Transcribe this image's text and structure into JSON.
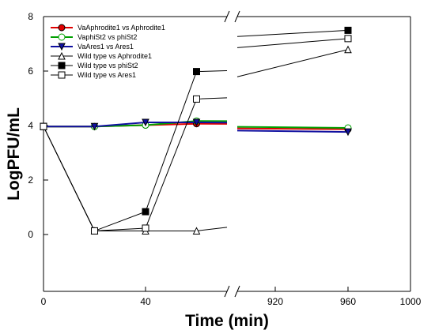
{
  "chart_data": {
    "type": "line",
    "title": "",
    "xlabel": "Time (min)",
    "ylabel": "LogPFU/mL",
    "ylim": [
      -2,
      8
    ],
    "y_ticks": [
      "0",
      "2",
      "4",
      "6",
      "8"
    ],
    "x_ticks_left": [
      "0",
      "40"
    ],
    "x_ticks_right": [
      "920",
      "960",
      "1000"
    ],
    "x_break": "broken x-axis between the 40 and 920 segments",
    "grid": false,
    "legend_position": "top-left",
    "series": [
      {
        "name": "VaAphrodite1 vs Aphrodite1",
        "color": "#e00000",
        "marker": "filled-circle",
        "points": [
          [
            0,
            4.0
          ],
          [
            20,
            4.0
          ],
          [
            40,
            4.05
          ],
          [
            60,
            4.1
          ],
          [
            960,
            3.9
          ]
        ]
      },
      {
        "name": "VaphiSt2 vs phiSt2",
        "color": "#00a000",
        "marker": "open-circle",
        "points": [
          [
            0,
            4.0
          ],
          [
            20,
            4.0
          ],
          [
            40,
            4.05
          ],
          [
            60,
            4.2
          ],
          [
            960,
            3.95
          ]
        ]
      },
      {
        "name": "VaAres1 vs Ares1",
        "color": "#1010a0",
        "marker": "filled-triangle-down",
        "points": [
          [
            0,
            4.0
          ],
          [
            20,
            4.0
          ],
          [
            40,
            4.15
          ],
          [
            60,
            4.15
          ],
          [
            960,
            3.8
          ]
        ]
      },
      {
        "name": "Wild type vs Aphrodite1",
        "color": "#000000",
        "marker": "open-triangle-up",
        "points": [
          [
            0,
            4.0
          ],
          [
            20,
            0.2
          ],
          [
            40,
            0.2
          ],
          [
            60,
            0.2
          ],
          [
            960,
            6.8
          ]
        ]
      },
      {
        "name": "Wild type vs phiSt2",
        "color": "#000000",
        "marker": "filled-square",
        "points": [
          [
            0,
            4.0
          ],
          [
            20,
            0.2
          ],
          [
            40,
            0.9
          ],
          [
            60,
            6.0
          ],
          [
            960,
            7.5
          ]
        ]
      },
      {
        "name": "Wild type vs Ares1",
        "color": "#000000",
        "marker": "open-square",
        "points": [
          [
            0,
            4.0
          ],
          [
            20,
            0.2
          ],
          [
            40,
            0.3
          ],
          [
            60,
            5.0
          ],
          [
            960,
            7.2
          ]
        ]
      }
    ]
  }
}
